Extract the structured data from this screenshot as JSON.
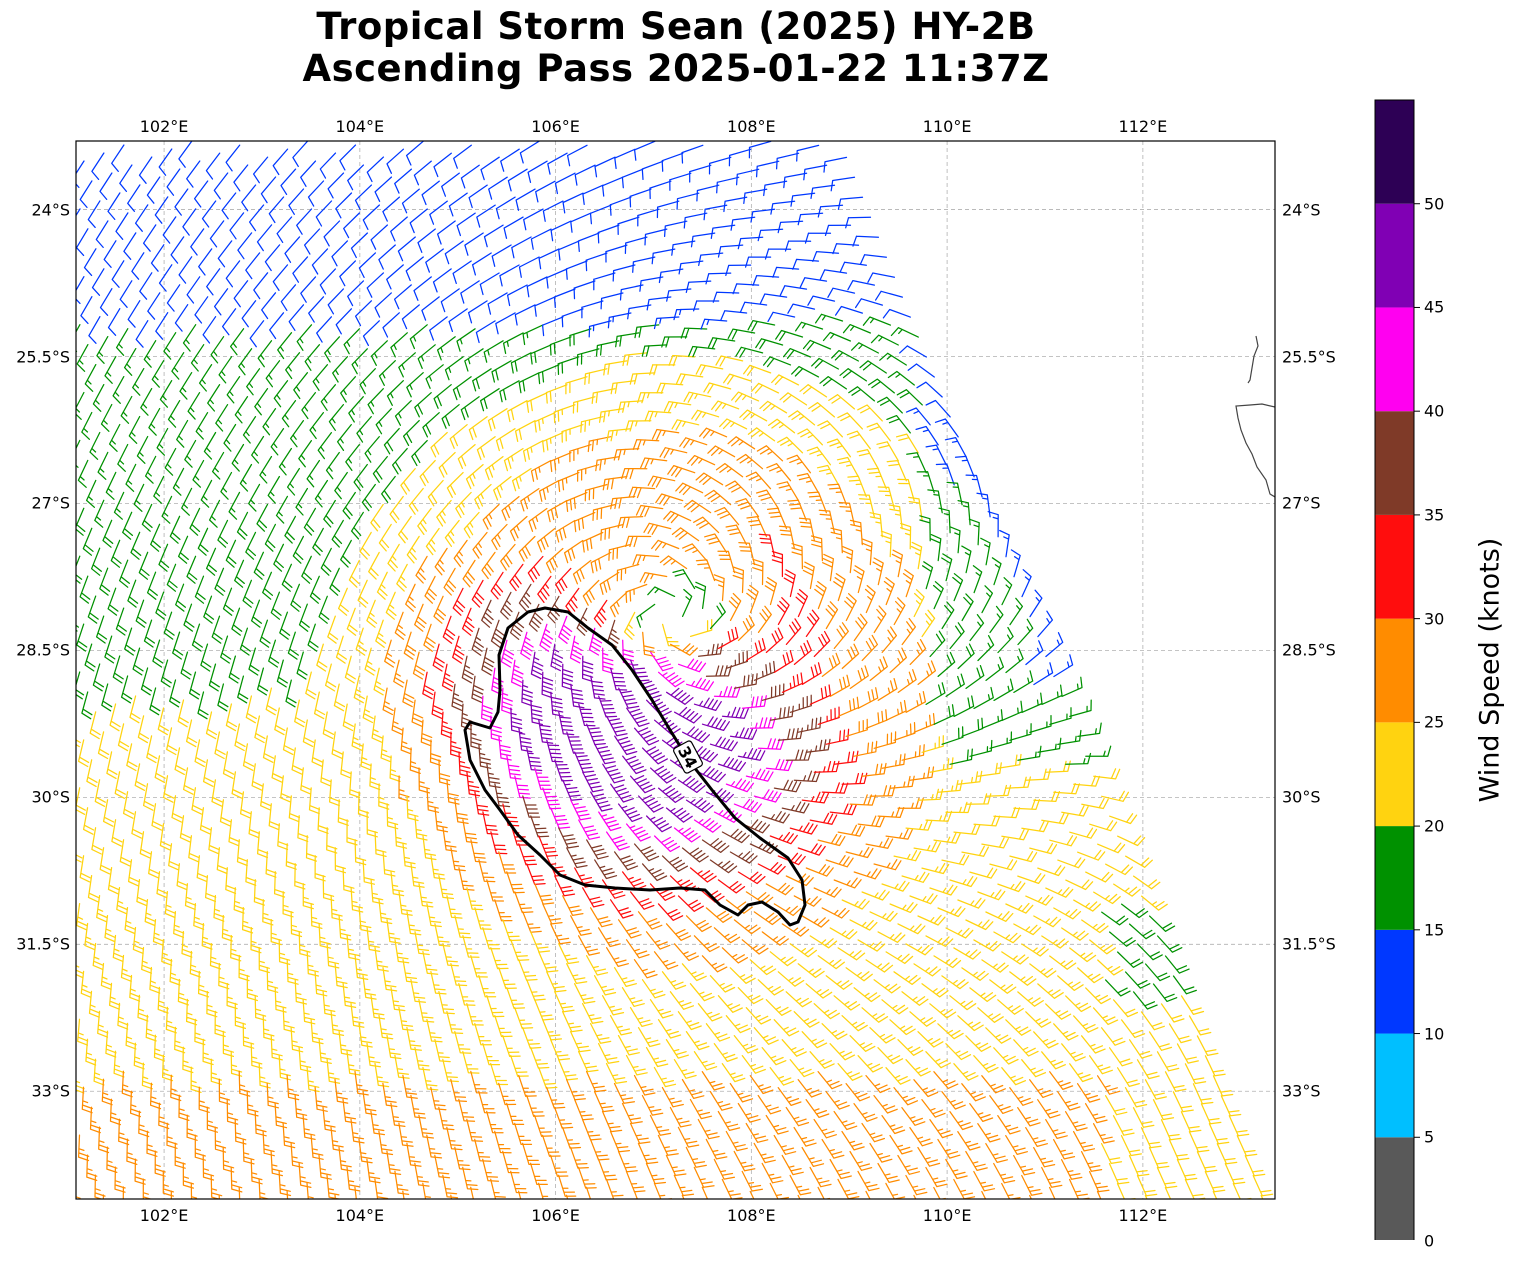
{
  "title_line1": "Tropical Storm Sean (2025) HY-2B",
  "title_line2": "Ascending Pass 2025-01-22 11:37Z",
  "map": {
    "lon_range": [
      101.1,
      113.35
    ],
    "lat_range": [
      -34.1,
      -23.3
    ],
    "lon_ticks": [
      {
        "value": 102,
        "label": "102°E"
      },
      {
        "value": 104,
        "label": "104°E"
      },
      {
        "value": 106,
        "label": "106°E"
      },
      {
        "value": 108,
        "label": "108°E"
      },
      {
        "value": 110,
        "label": "110°E"
      },
      {
        "value": 112,
        "label": "112°E"
      }
    ],
    "lat_ticks": [
      {
        "value": -24,
        "label": "24°S"
      },
      {
        "value": -25.5,
        "label": "25.5°S"
      },
      {
        "value": -27,
        "label": "27°S"
      },
      {
        "value": -28.5,
        "label": "28.5°S"
      },
      {
        "value": -30,
        "label": "30°S"
      },
      {
        "value": -31.5,
        "label": "31.5°S"
      },
      {
        "value": -33,
        "label": "33°S"
      }
    ],
    "gridlines": true,
    "storm_center": {
      "lon": 107.2,
      "lat": -28.15
    },
    "contour_label": "34",
    "contour_threshold_kt": 34,
    "contour_color": "#000000",
    "swath_boundary": {
      "top_left_lon": 101.1,
      "top_right_lon": 108.9,
      "east_edge_bottom_lon": 113.35
    }
  },
  "colorbar": {
    "label": "Wind Speed (knots)",
    "range": [
      0,
      55
    ],
    "ticks": [
      "0",
      "5",
      "10",
      "15",
      "20",
      "25",
      "30",
      "35",
      "40",
      "45",
      "50"
    ],
    "bins": [
      {
        "min": 0,
        "max": 5,
        "color": "#595959"
      },
      {
        "min": 5,
        "max": 10,
        "color": "#00bfff"
      },
      {
        "min": 10,
        "max": 15,
        "color": "#0038ff"
      },
      {
        "min": 15,
        "max": 20,
        "color": "#009100"
      },
      {
        "min": 20,
        "max": 25,
        "color": "#ffd310"
      },
      {
        "min": 25,
        "max": 30,
        "color": "#ff8c00"
      },
      {
        "min": 30,
        "max": 35,
        "color": "#ff0d0d"
      },
      {
        "min": 35,
        "max": 40,
        "color": "#7f3a28"
      },
      {
        "min": 40,
        "max": 45,
        "color": "#ff00f0"
      },
      {
        "min": 45,
        "max": 50,
        "color": "#8000b4"
      },
      {
        "min": 50,
        "max": 55,
        "color": "#2d0055"
      }
    ]
  }
}
